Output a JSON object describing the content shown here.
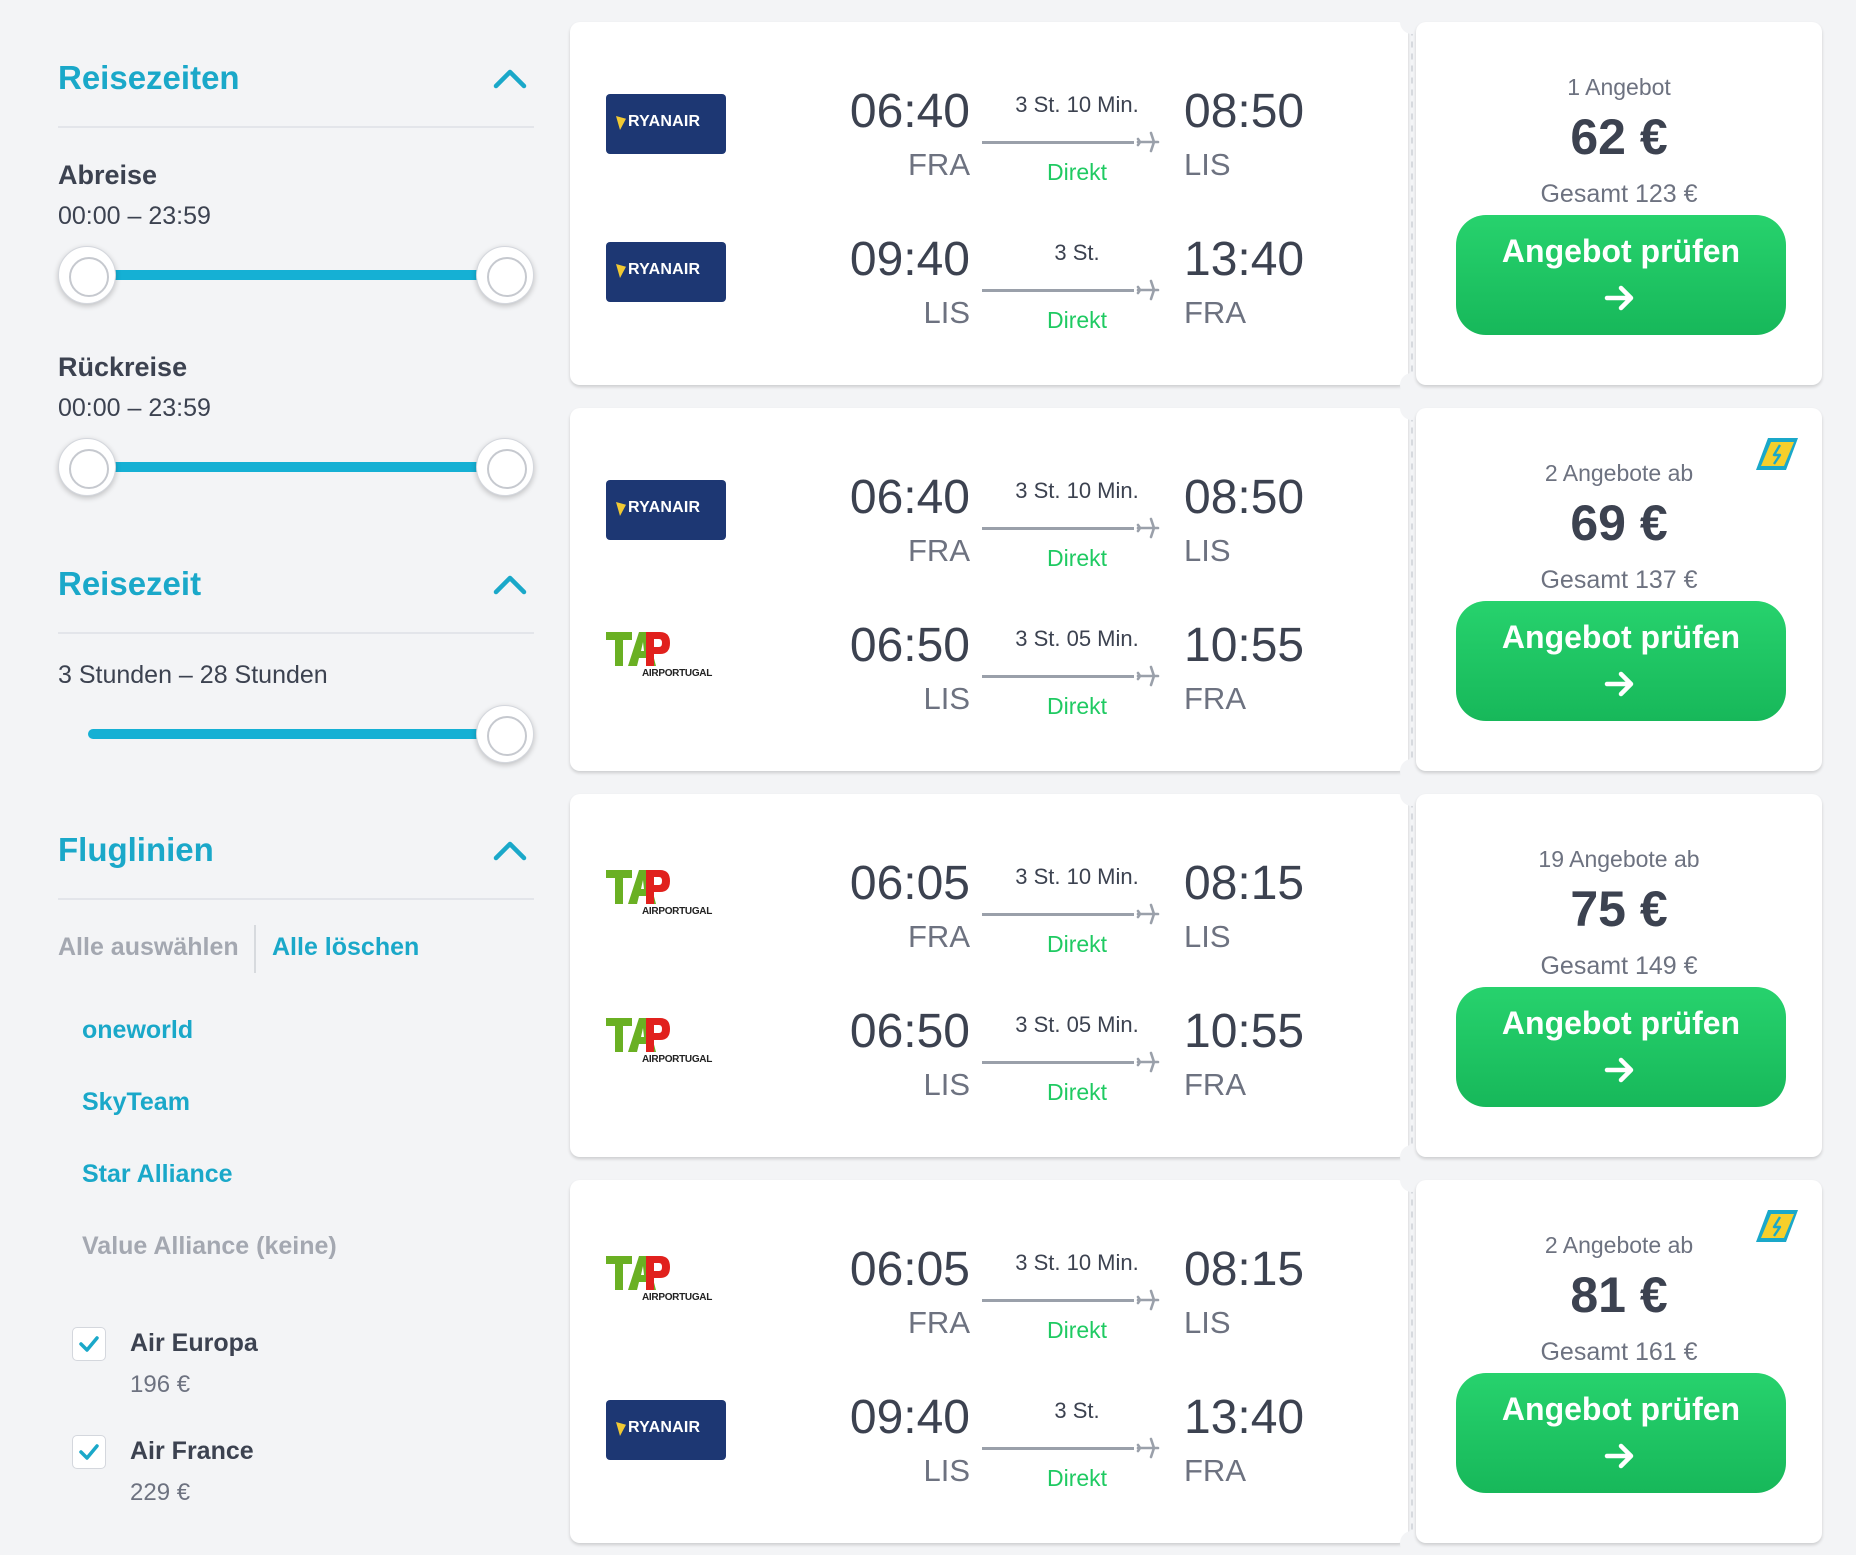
{
  "sidebar": {
    "reisezeiten": {
      "title": "Reisezeiten",
      "abreise_label": "Abreise",
      "abreise_range": "00:00 – 23:59",
      "abreise_slider": {
        "min_fraction": 0.0,
        "max_fraction": 1.0
      },
      "rueckreise_label": "Rückreise",
      "rueckreise_range": "00:00 – 23:59",
      "rueckreise_slider": {
        "min_fraction": 0.0,
        "max_fraction": 1.0
      }
    },
    "reisezeit": {
      "title": "Reisezeit",
      "range": "3 Stunden – 28 Stunden",
      "slider_max_fraction": 1.0
    },
    "fluglinien": {
      "title": "Fluglinien",
      "select_all": "Alle auswählen",
      "clear_all": "Alle löschen",
      "alliances": [
        "oneworld",
        "SkyTeam",
        "Star Alliance",
        "Value Alliance (keine)"
      ],
      "airlines": [
        {
          "name": "Air Europa",
          "price": "196 €",
          "checked": true
        },
        {
          "name": "Air France",
          "price": "229 €",
          "checked": true
        }
      ]
    }
  },
  "colors": {
    "accent": "#1aa8c9",
    "green": "#1fca62",
    "button": "#1cc261",
    "ryanair": "#1d3773",
    "tap_red": "#e1211d",
    "tap_green": "#6ab023"
  },
  "results": [
    {
      "legs": [
        {
          "airline": "RYANAIR",
          "logo": "ryanair-logo",
          "dep_time": "06:40",
          "dep_airport": "FRA",
          "duration": "3 St. 10 Min.",
          "stops": "Direkt",
          "arr_time": "08:50",
          "arr_airport": "LIS"
        },
        {
          "airline": "RYANAIR",
          "logo": "ryanair-logo",
          "dep_time": "09:40",
          "dep_airport": "LIS",
          "duration": "3 St.",
          "stops": "Direkt",
          "arr_time": "13:40",
          "arr_airport": "FRA"
        }
      ],
      "offers": "1 Angebot",
      "price": "62 €",
      "total": "Gesamt 123 €",
      "button": "Angebot prüfen",
      "ticket_icon": false
    },
    {
      "legs": [
        {
          "airline": "RYANAIR",
          "logo": "ryanair-logo",
          "dep_time": "06:40",
          "dep_airport": "FRA",
          "duration": "3 St. 10 Min.",
          "stops": "Direkt",
          "arr_time": "08:50",
          "arr_airport": "LIS"
        },
        {
          "airline": "AIRPORTUGAL",
          "logo": "tap-logo",
          "dep_time": "06:50",
          "dep_airport": "LIS",
          "duration": "3 St. 05 Min.",
          "stops": "Direkt",
          "arr_time": "10:55",
          "arr_airport": "FRA"
        }
      ],
      "offers": "2 Angebote ab",
      "price": "69 €",
      "total": "Gesamt 137 €",
      "button": "Angebot prüfen",
      "ticket_icon": true
    },
    {
      "legs": [
        {
          "airline": "AIRPORTUGAL",
          "logo": "tap-logo",
          "dep_time": "06:05",
          "dep_airport": "FRA",
          "duration": "3 St. 10 Min.",
          "stops": "Direkt",
          "arr_time": "08:15",
          "arr_airport": "LIS"
        },
        {
          "airline": "AIRPORTUGAL",
          "logo": "tap-logo",
          "dep_time": "06:50",
          "dep_airport": "LIS",
          "duration": "3 St. 05 Min.",
          "stops": "Direkt",
          "arr_time": "10:55",
          "arr_airport": "FRA"
        }
      ],
      "offers": "19 Angebote ab",
      "price": "75 €",
      "total": "Gesamt 149 €",
      "button": "Angebot prüfen",
      "ticket_icon": false
    },
    {
      "legs": [
        {
          "airline": "AIRPORTUGAL",
          "logo": "tap-logo",
          "dep_time": "06:05",
          "dep_airport": "FRA",
          "duration": "3 St. 10 Min.",
          "stops": "Direkt",
          "arr_time": "08:15",
          "arr_airport": "LIS"
        },
        {
          "airline": "RYANAIR",
          "logo": "ryanair-logo",
          "dep_time": "09:40",
          "dep_airport": "LIS",
          "duration": "3 St.",
          "stops": "Direkt",
          "arr_time": "13:40",
          "arr_airport": "FRA"
        }
      ],
      "offers": "2 Angebote ab",
      "price": "81 €",
      "total": "Gesamt 161 €",
      "button": "Angebot prüfen",
      "ticket_icon": true
    }
  ]
}
